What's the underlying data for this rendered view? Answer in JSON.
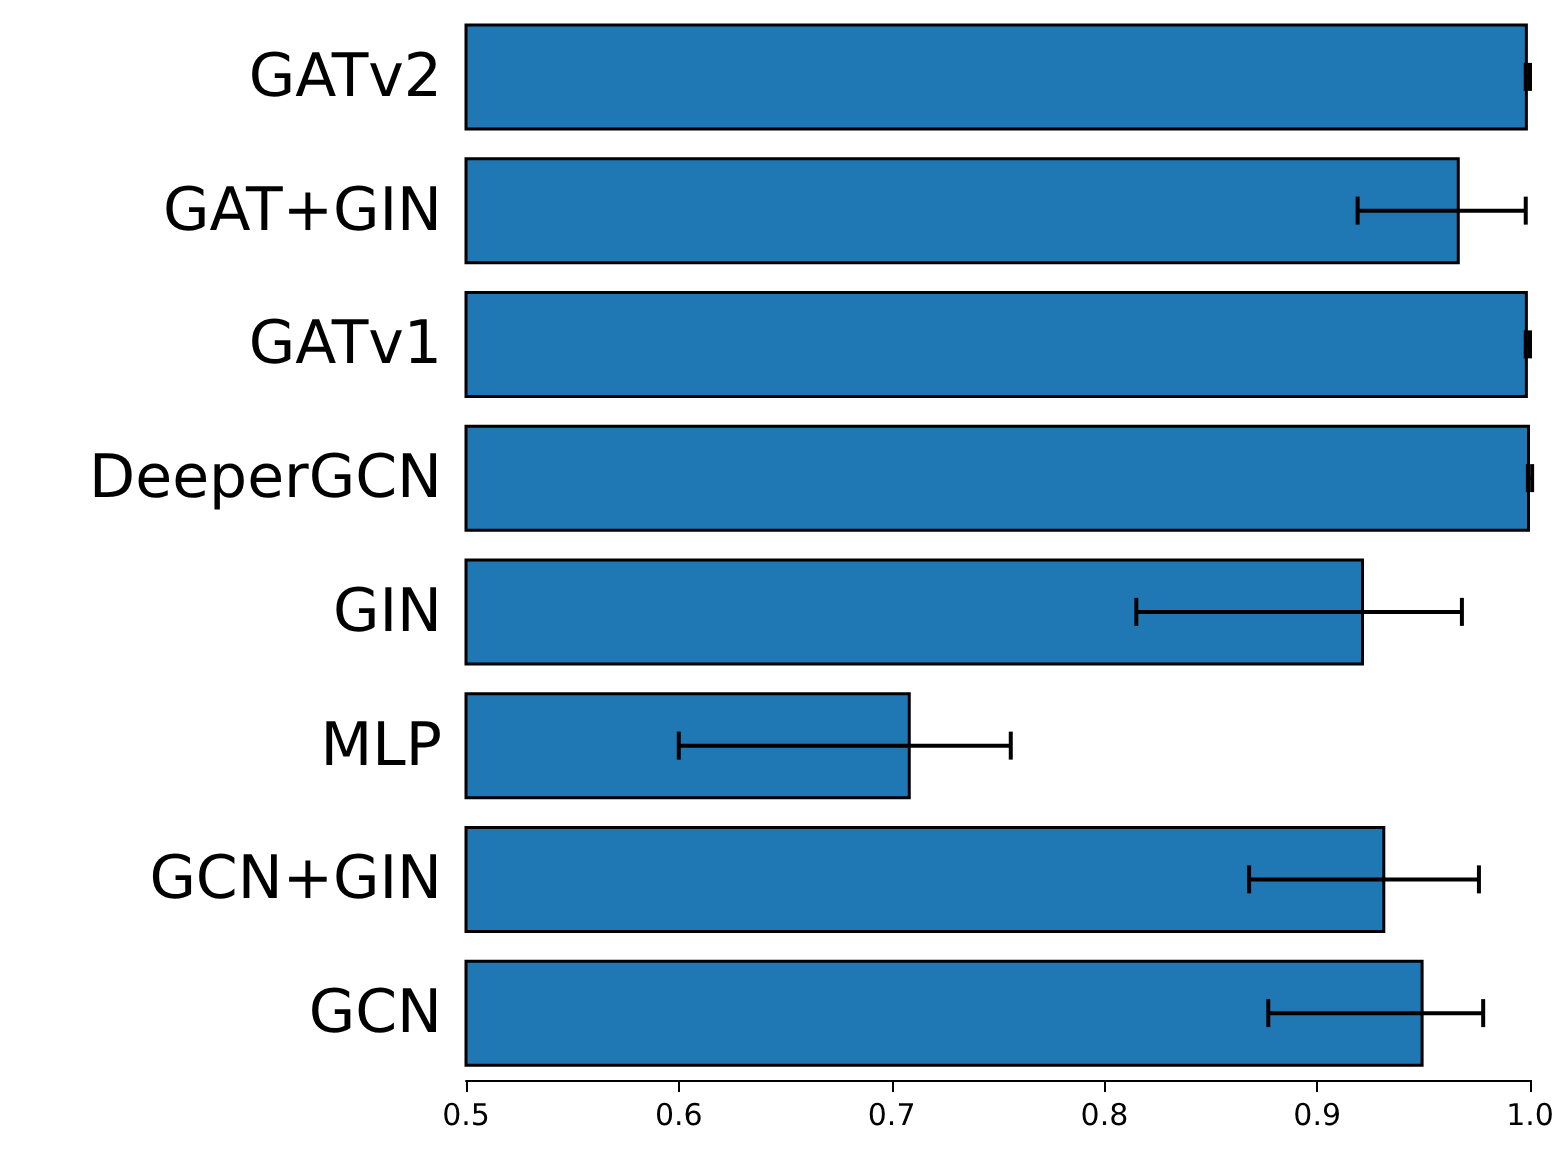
{
  "chart_data": {
    "type": "bar",
    "orientation": "horizontal",
    "categories": [
      "GATv2",
      "GAT+GIN",
      "GATv1",
      "DeeperGCN",
      "GIN",
      "MLP",
      "GCN+GIN",
      "GCN"
    ],
    "values": [
      0.999,
      0.967,
      0.999,
      1.0,
      0.922,
      0.709,
      0.932,
      0.95
    ],
    "errors": [
      0.001,
      [
        0.919,
        0.998
      ],
      0.001,
      0.001,
      [
        0.815,
        0.968
      ],
      [
        0.6,
        0.756
      ],
      [
        0.868,
        0.976
      ],
      [
        0.877,
        0.978
      ]
    ],
    "color": "#1f77b4",
    "xlim": [
      0.5,
      1.0
    ],
    "xticks": [
      0.5,
      0.6,
      0.7,
      0.8,
      0.9,
      {
        "value": 1.0,
        "label": "1.0"
      }
    ],
    "grid": false
  }
}
